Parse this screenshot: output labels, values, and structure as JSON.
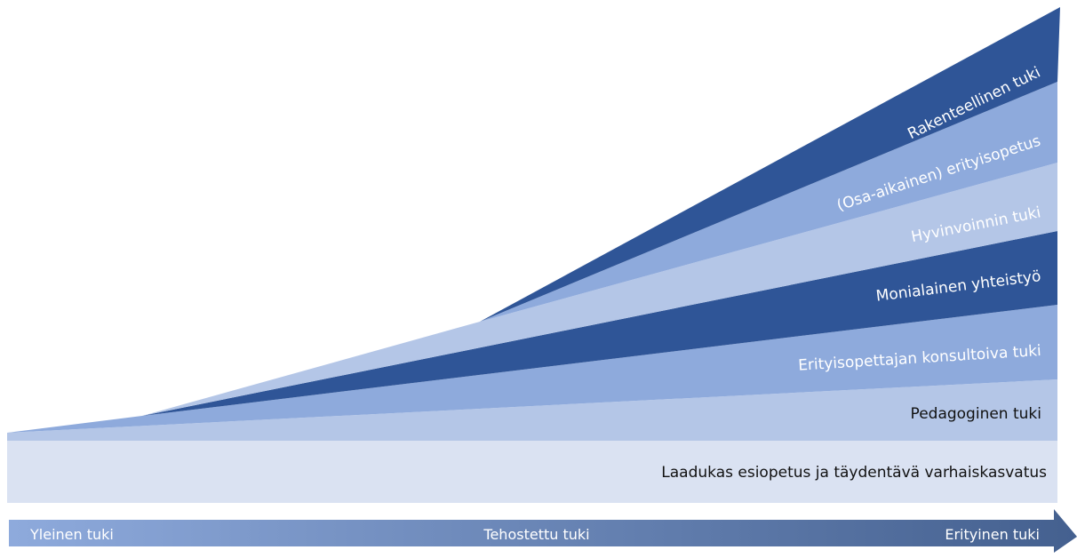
{
  "base": {
    "label": "Laadukas esiopetus ja täydentävä varhaiskasvatus",
    "color": "#dae2f2",
    "text_color": "#111111"
  },
  "layers": [
    {
      "label": "Pedagoginen tuki",
      "color": "#b4c6e7",
      "text_color": "#111111"
    },
    {
      "label": "Erityisopettajan konsultoiva tuki",
      "color": "#8eaadc",
      "text_color": "#ffffff"
    },
    {
      "label": "Monialainen yhteistyö",
      "color": "#2f5597",
      "text_color": "#ffffff"
    },
    {
      "label": "Hyvinvoinnin tuki",
      "color": "#b4c6e7",
      "text_color": "#ffffff"
    },
    {
      "label": "(Osa-aikainen) erityisopetus",
      "color": "#8eaadc",
      "text_color": "#ffffff"
    },
    {
      "label": "Rakenteellinen tuki",
      "color": "#2f5597",
      "text_color": "#ffffff"
    }
  ],
  "arrow": {
    "labels": [
      "Yleinen tuki",
      "Tehostettu tuki",
      "Erityinen tuki"
    ],
    "color_start": "#8eaadc",
    "color_end": "#44608f",
    "text_color": "#ffffff"
  }
}
